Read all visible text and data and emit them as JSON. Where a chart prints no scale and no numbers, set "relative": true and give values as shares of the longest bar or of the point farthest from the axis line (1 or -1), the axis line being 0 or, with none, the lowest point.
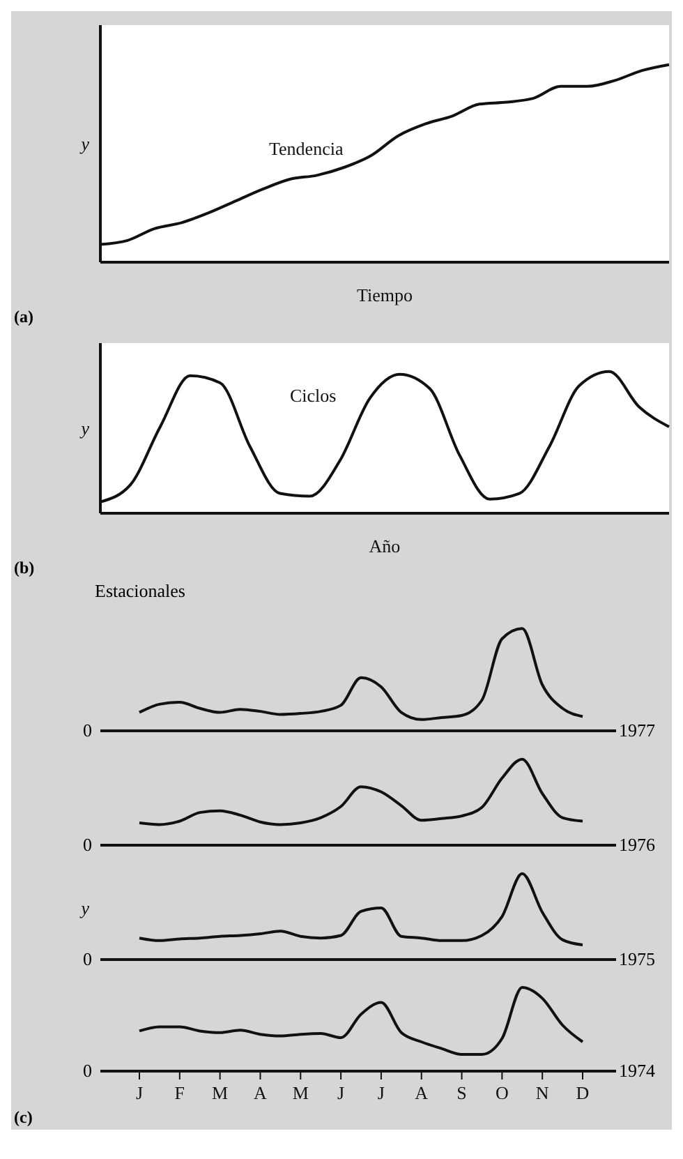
{
  "chart_data": [
    {
      "type": "line",
      "relative": true,
      "xlabel": "Tiempo",
      "ylabel": "y",
      "annotations": [
        "(a)"
      ],
      "categories": [
        null,
        null,
        null,
        null,
        null,
        null,
        null,
        null,
        null,
        null,
        null,
        null,
        null,
        null,
        null,
        null,
        null,
        null,
        null,
        null,
        null,
        null
      ],
      "series": [
        {
          "name": "Tendencia",
          "color": "#111111",
          "values": [
            0.09,
            0.11,
            0.17,
            0.2,
            0.25,
            0.31,
            0.37,
            0.42,
            0.44,
            0.48,
            0.54,
            0.64,
            0.7,
            0.74,
            0.8,
            0.81,
            0.83,
            0.89,
            0.89,
            0.92,
            0.97,
            1
          ]
        }
      ]
    },
    {
      "type": "line",
      "relative": true,
      "xlabel": "Año",
      "ylabel": "y",
      "annotations": [
        "(b)"
      ],
      "categories": [
        null,
        null,
        null,
        null,
        null,
        null,
        null,
        null,
        null,
        null,
        null,
        null,
        null,
        null,
        null,
        null,
        null,
        null,
        null,
        null
      ],
      "series": [
        {
          "name": "Ciclos",
          "color": "#111111",
          "values": [
            0.08,
            0.2,
            0.61,
            0.97,
            0.92,
            0.47,
            0.14,
            0.12,
            0.37,
            0.81,
            0.98,
            0.88,
            0.41,
            0.1,
            0.14,
            0.47,
            0.9,
            1,
            0.75,
            0.61
          ]
        }
      ]
    },
    {
      "type": "line",
      "relative": true,
      "title": "Estacionales",
      "tick_labels": false,
      "annotations": [
        "0",
        "1977"
      ],
      "categories": [
        null,
        null,
        null,
        null,
        null,
        null,
        null,
        null,
        null,
        null,
        null,
        null,
        null,
        null,
        null,
        null,
        null,
        null,
        null,
        null,
        null,
        null,
        null
      ],
      "series": [
        {
          "color": "#111111",
          "values": [
            0.18,
            0.26,
            0.28,
            0.22,
            0.18,
            0.21,
            0.19,
            0.16,
            0.17,
            0.19,
            0.25,
            0.52,
            0.43,
            0.18,
            0.11,
            0.13,
            0.15,
            0.3,
            0.9,
            1,
            0.45,
            0.22,
            0.14
          ]
        }
      ]
    },
    {
      "type": "line",
      "relative": true,
      "tick_labels": false,
      "annotations": [
        "0",
        "1976"
      ],
      "categories": [
        null,
        null,
        null,
        null,
        null,
        null,
        null,
        null,
        null,
        null,
        null,
        null,
        null,
        null,
        null,
        null,
        null,
        null,
        null,
        null,
        null,
        null,
        null
      ],
      "series": [
        {
          "color": "#111111",
          "values": [
            0.26,
            0.24,
            0.28,
            0.38,
            0.4,
            0.35,
            0.27,
            0.24,
            0.26,
            0.32,
            0.45,
            0.68,
            0.62,
            0.46,
            0.29,
            0.31,
            0.34,
            0.44,
            0.78,
            1,
            0.6,
            0.32,
            0.28
          ]
        }
      ]
    },
    {
      "type": "line",
      "relative": true,
      "ylabel": "y",
      "tick_labels": false,
      "annotations": [
        "0",
        "1975"
      ],
      "categories": [
        null,
        null,
        null,
        null,
        null,
        null,
        null,
        null,
        null,
        null,
        null,
        null,
        null,
        null,
        null,
        null,
        null,
        null,
        null,
        null,
        null,
        null,
        null
      ],
      "series": [
        {
          "color": "#111111",
          "values": [
            0.25,
            0.22,
            0.24,
            0.25,
            0.27,
            0.28,
            0.3,
            0.33,
            0.27,
            0.25,
            0.28,
            0.56,
            0.6,
            0.27,
            0.25,
            0.22,
            0.22,
            0.28,
            0.5,
            1,
            0.55,
            0.23,
            0.17
          ]
        }
      ]
    },
    {
      "type": "line",
      "relative": true,
      "annotations": [
        "0",
        "1974",
        "(c)"
      ],
      "categories": [
        "J",
        null,
        "F",
        null,
        "M",
        null,
        "A",
        null,
        "M",
        null,
        "J",
        null,
        "J",
        null,
        "A",
        null,
        "S",
        null,
        "O",
        null,
        "N",
        null,
        "D"
      ],
      "series": [
        {
          "color": "#111111",
          "values": [
            0.48,
            0.53,
            0.53,
            0.48,
            0.46,
            0.49,
            0.44,
            0.42,
            0.44,
            0.45,
            0.4,
            0.68,
            0.82,
            0.46,
            0.35,
            0.27,
            0.2,
            0.2,
            0.39,
            1,
            0.87,
            0.55,
            0.35
          ]
        }
      ]
    }
  ]
}
